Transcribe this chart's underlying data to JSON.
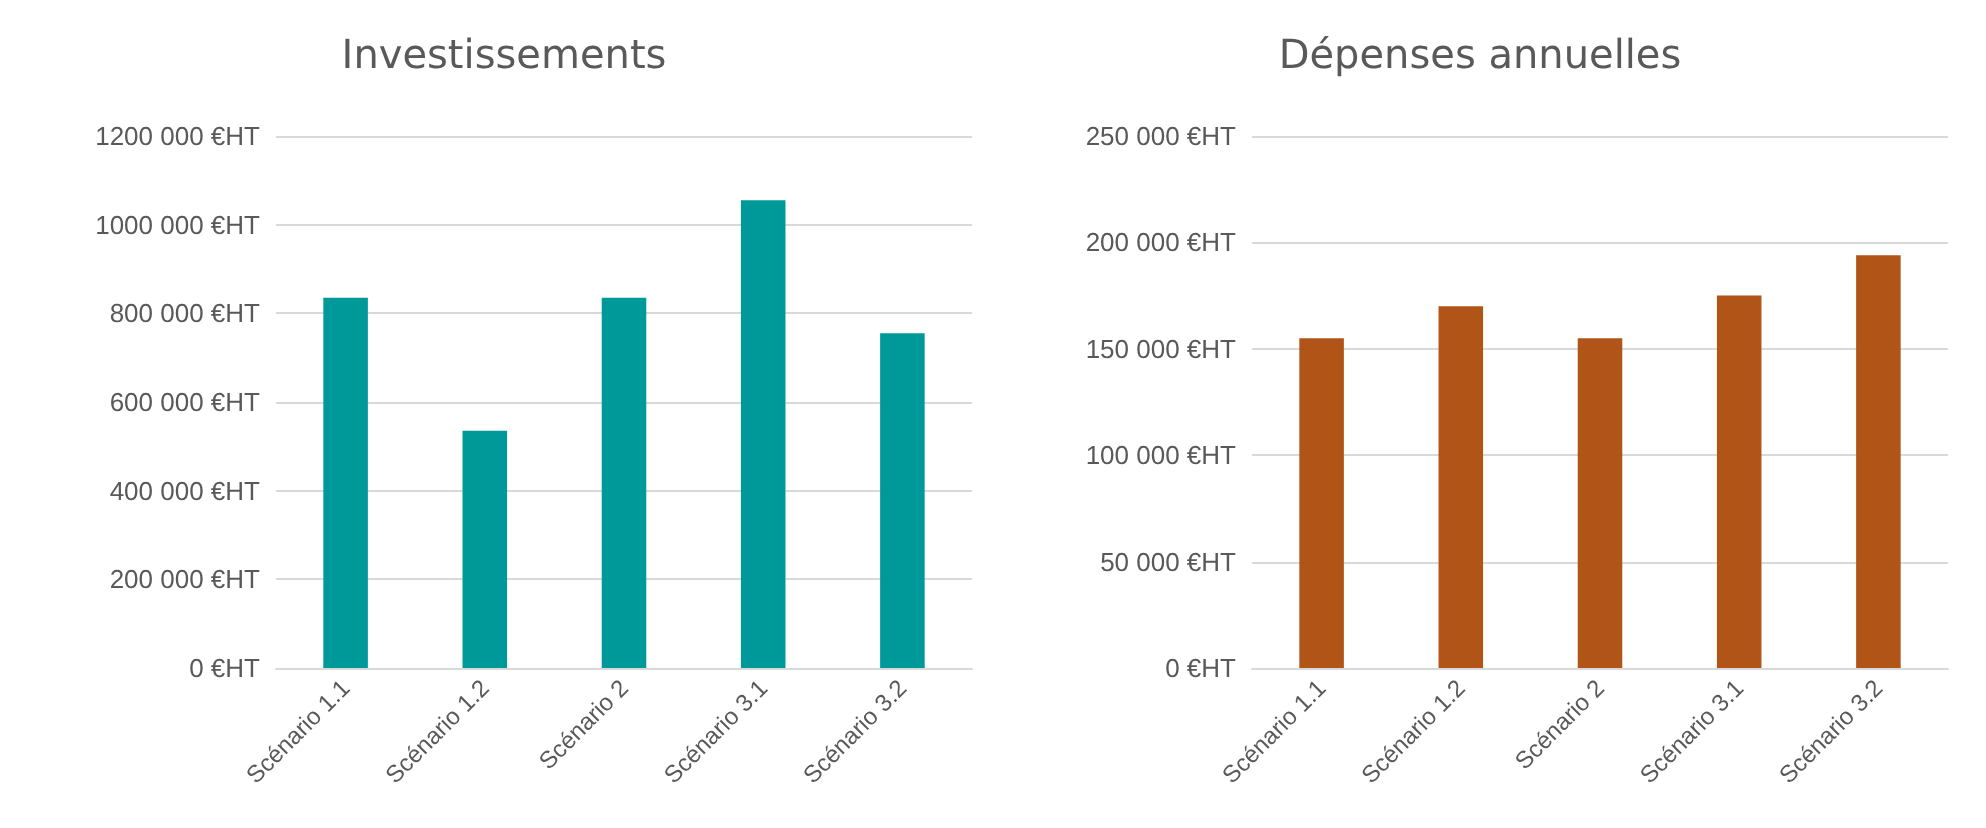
{
  "chart_data": [
    {
      "type": "bar",
      "title": "Investissements",
      "categories": [
        "Scénario 1.1",
        "Scénario 1.2",
        "Scénario 2",
        "Scénario 3.1",
        "Scénario 3.2"
      ],
      "values": [
        835000,
        535000,
        835000,
        1055000,
        755000
      ],
      "color": "#009999",
      "ylim": [
        0,
        1200000
      ],
      "yticks": [
        {
          "value": 0,
          "label": "0 €HT"
        },
        {
          "value": 200000,
          "label": "200 000 €HT"
        },
        {
          "value": 400000,
          "label": "400 000 €HT"
        },
        {
          "value": 600000,
          "label": "600 000 €HT"
        },
        {
          "value": 800000,
          "label": "800 000 €HT"
        },
        {
          "value": 1000000,
          "label": "1000 000 €HT"
        },
        {
          "value": 1200000,
          "label": "1200 000 €HT"
        }
      ],
      "grid": "y"
    },
    {
      "type": "bar",
      "title": "Dépenses annuelles",
      "categories": [
        "Scénario 1.1",
        "Scénario 1.2",
        "Scénario 2",
        "Scénario 3.1",
        "Scénario 3.2"
      ],
      "values": [
        155000,
        170000,
        155000,
        175000,
        194000
      ],
      "color": "#b05418",
      "ylim": [
        0,
        250000
      ],
      "yticks": [
        {
          "value": 0,
          "label": "0 €HT"
        },
        {
          "value": 50000,
          "label": "50 000 €HT"
        },
        {
          "value": 100000,
          "label": "100 000 €HT"
        },
        {
          "value": 150000,
          "label": "150 000 €HT"
        },
        {
          "value": 200000,
          "label": "200 000 €HT"
        },
        {
          "value": 250000,
          "label": "250 000 €HT"
        }
      ],
      "grid": "y"
    }
  ]
}
